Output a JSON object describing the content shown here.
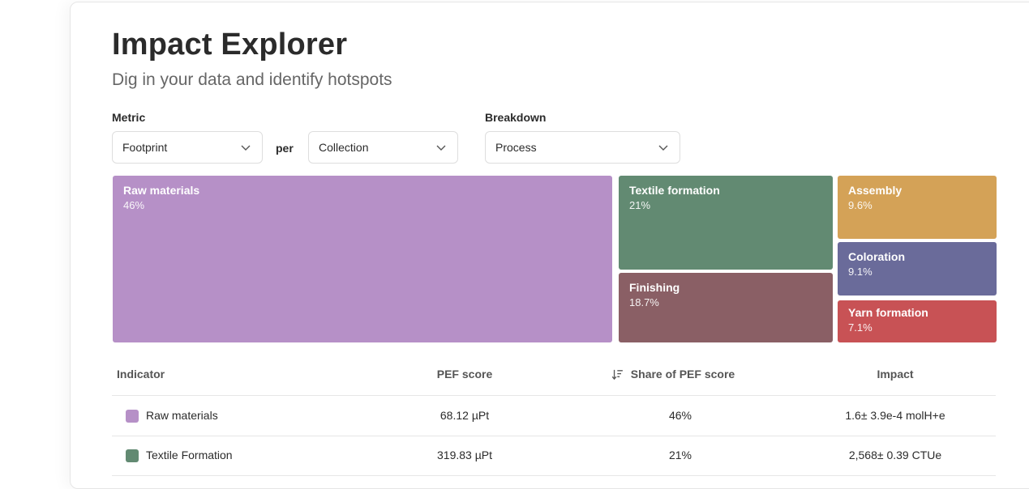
{
  "header": {
    "title": "Impact Explorer",
    "subtitle": "Dig in your data and identify hotspots"
  },
  "controls": {
    "metric_label": "Metric",
    "metric_value": "Footprint",
    "per_label": "per",
    "per_value": "Collection",
    "breakdown_label": "Breakdown",
    "breakdown_value": "Process"
  },
  "treemap": {
    "tiles": [
      {
        "name": "Raw materials",
        "share": "46%",
        "color": "#b690c7"
      },
      {
        "name": "Textile formation",
        "share": "21%",
        "color": "#628a72"
      },
      {
        "name": "Finishing",
        "share": "18.7%",
        "color": "#8a5f65"
      },
      {
        "name": "Assembly",
        "share": "9.6%",
        "color": "#d4a257"
      },
      {
        "name": "Coloration",
        "share": "9.1%",
        "color": "#6a6b9a"
      },
      {
        "name": "Yarn formation",
        "share": "7.1%",
        "color": "#c85255"
      }
    ]
  },
  "table": {
    "columns": {
      "indicator": "Indicator",
      "pef_score": "PEF score",
      "share": "Share of PEF score",
      "impact": "Impact"
    },
    "rows": [
      {
        "indicator": "Raw materials",
        "pef_score": "68.12 µPt",
        "share": "46%",
        "impact": "1.6± 3.9e-4 molH+e",
        "color": "#b690c7"
      },
      {
        "indicator": "Textile Formation",
        "pef_score": "319.83 µPt",
        "share": "21%",
        "impact": "2,568± 0.39 CTUe",
        "color": "#628a72"
      }
    ]
  }
}
